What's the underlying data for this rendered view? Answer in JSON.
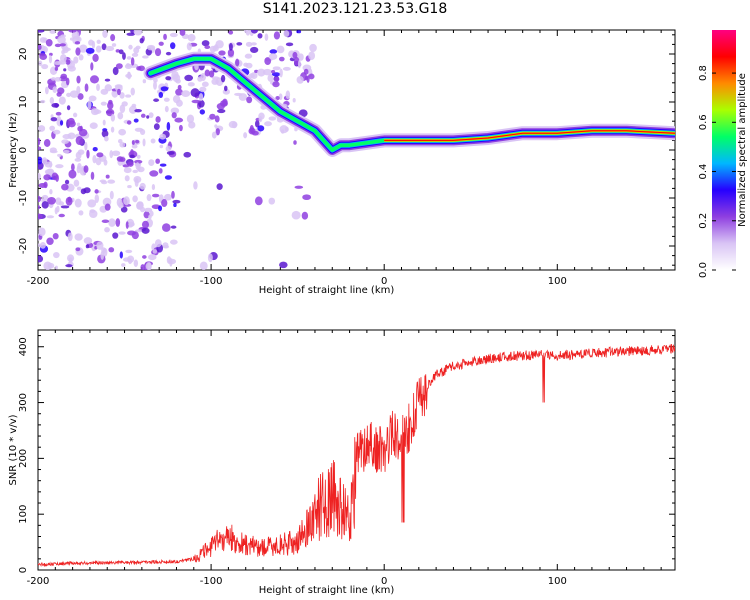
{
  "title": "S141.2023.121.23.53.G18",
  "chart_data": [
    {
      "type": "heatmap",
      "xlabel": "Height of straight line (km)",
      "ylabel": "Frequency (Hz)",
      "xlim": [
        -200,
        168
      ],
      "ylim": [
        -25,
        25
      ],
      "xticks": [
        -200,
        -100,
        0,
        100
      ],
      "yticks": [
        -20,
        -10,
        0,
        10,
        20
      ],
      "colorbar": {
        "label": "Normalized spectral amplitude",
        "range": [
          0,
          1
        ],
        "ticks": [
          "0.0",
          "0.2",
          "0.4",
          "0.6",
          "0.8"
        ],
        "colors": [
          "#ffffff",
          "#d9c4f5",
          "#8f3fe0",
          "#2600ff",
          "#00b7ff",
          "#00ff66",
          "#aaff00",
          "#ff8a00",
          "#ff0000",
          "#ff0080"
        ]
      },
      "ridge": {
        "x": [
          -135,
          -120,
          -110,
          -100,
          -90,
          -80,
          -70,
          -60,
          -50,
          -40,
          -35,
          -30,
          -25,
          -20,
          -10,
          0,
          10,
          20,
          40,
          60,
          80,
          100,
          120,
          140,
          168
        ],
        "y": [
          16,
          18,
          19,
          19,
          17,
          14,
          11,
          8,
          6,
          4,
          2,
          0,
          1,
          1,
          1.5,
          2,
          2,
          2,
          2,
          2.5,
          3.5,
          3.5,
          4,
          4,
          3.5
        ]
      }
    },
    {
      "type": "line",
      "xlabel": "Height of straight line (km)",
      "ylabel": "SNR (10 * v/v)",
      "xlim": [
        -200,
        168
      ],
      "ylim": [
        0,
        430
      ],
      "xticks": [
        -200,
        -100,
        0,
        100
      ],
      "yticks": [
        0,
        100,
        200,
        300,
        400
      ],
      "color": "#ee2222",
      "series": [
        {
          "x": [
            -200,
            -180,
            -160,
            -140,
            -120,
            -110,
            -100,
            -95,
            -90,
            -85,
            -80,
            -70,
            -60,
            -50,
            -40,
            -35,
            -30,
            -25,
            -20,
            -15,
            -10,
            -5,
            0,
            5,
            10,
            15,
            20,
            25,
            30,
            40,
            50,
            60,
            70,
            80,
            90,
            100,
            110,
            120,
            130,
            140,
            150,
            160,
            168
          ],
          "y": [
            10,
            12,
            13,
            14,
            15,
            20,
            40,
            55,
            60,
            50,
            45,
            40,
            45,
            50,
            100,
            120,
            130,
            110,
            90,
            200,
            230,
            220,
            210,
            250,
            230,
            260,
            300,
            330,
            350,
            365,
            372,
            378,
            382,
            384,
            386,
            384,
            386,
            388,
            390,
            392,
            393,
            395,
            397
          ]
        }
      ]
    }
  ]
}
